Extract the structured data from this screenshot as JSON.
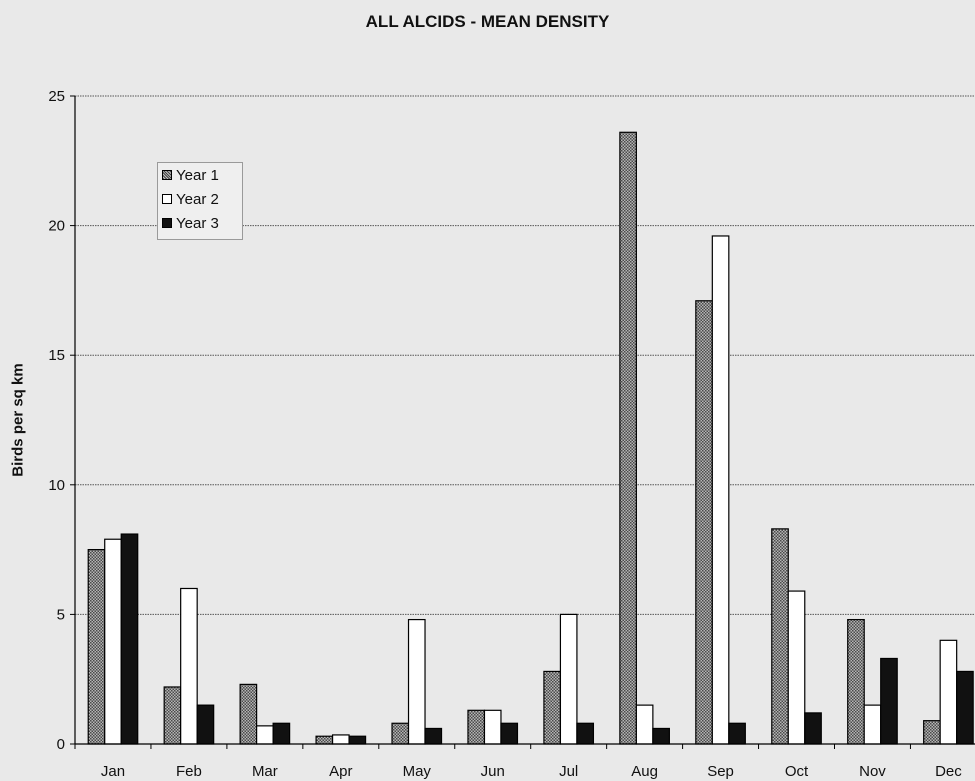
{
  "chart_data": {
    "type": "bar",
    "title": "ALL ALCIDS - MEAN DENSITY",
    "xlabel": "",
    "ylabel": "Birds per sq km",
    "ylim": [
      0,
      25
    ],
    "yticks": [
      0,
      5,
      10,
      15,
      20,
      25
    ],
    "grid": true,
    "legend_position": "top-left",
    "categories": [
      "Jan",
      "Feb",
      "Mar",
      "Apr",
      "May",
      "Jun",
      "Jul",
      "Aug",
      "Sep",
      "Oct",
      "Nov",
      "Dec"
    ],
    "series": [
      {
        "name": "Year 1",
        "color": "#8a8a8a",
        "pattern": "crosshatch",
        "values": [
          7.5,
          2.2,
          2.3,
          0.3,
          0.8,
          1.3,
          2.8,
          23.6,
          17.1,
          8.3,
          4.8,
          0.9
        ]
      },
      {
        "name": "Year 2",
        "color": "#ffffff",
        "pattern": "solid",
        "values": [
          7.9,
          6.0,
          0.7,
          0.35,
          4.8,
          1.3,
          5.0,
          1.5,
          19.6,
          5.9,
          1.5,
          4.0
        ]
      },
      {
        "name": "Year 3",
        "color": "#111111",
        "pattern": "solid",
        "values": [
          8.1,
          1.5,
          0.8,
          0.3,
          0.6,
          0.8,
          0.8,
          0.6,
          0.8,
          1.2,
          3.3,
          2.8
        ]
      }
    ]
  }
}
